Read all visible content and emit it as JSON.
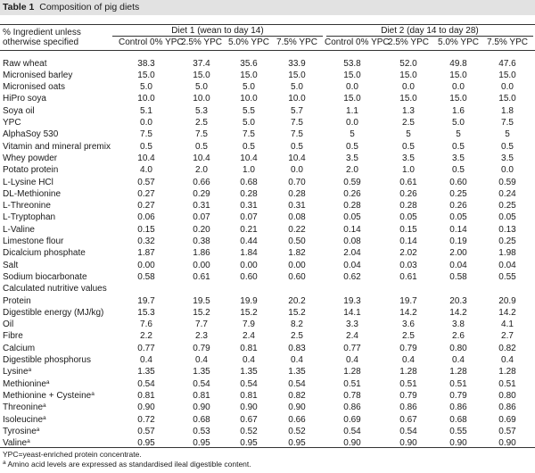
{
  "table": {
    "label": "Table 1",
    "title": "Composition of pig diets",
    "stub_header_line1": "% Ingredient unless",
    "stub_header_line2": "otherwise specified",
    "groups": [
      "Diet 1 (wean to day 14)",
      "Diet 2 (day 14 to day 28)"
    ],
    "columns": [
      "Control 0% YPC",
      "2.5% YPC",
      "5.0% YPC",
      "7.5% YPC",
      "Control 0% YPC",
      "2.5% YPC",
      "5.0% YPC",
      "7.5% YPC"
    ],
    "rows": [
      {
        "label": "Raw wheat",
        "sup": "",
        "values": [
          "38.3",
          "37.4",
          "35.6",
          "33.9",
          "53.8",
          "52.0",
          "49.8",
          "47.6"
        ]
      },
      {
        "label": "Micronised barley",
        "sup": "",
        "values": [
          "15.0",
          "15.0",
          "15.0",
          "15.0",
          "15.0",
          "15.0",
          "15.0",
          "15.0"
        ]
      },
      {
        "label": "Micronised oats",
        "sup": "",
        "values": [
          "5.0",
          "5.0",
          "5.0",
          "5.0",
          "0.0",
          "0.0",
          "0.0",
          "0.0"
        ]
      },
      {
        "label": "HiPro soya",
        "sup": "",
        "values": [
          "10.0",
          "10.0",
          "10.0",
          "10.0",
          "15.0",
          "15.0",
          "15.0",
          "15.0"
        ]
      },
      {
        "label": "Soya oil",
        "sup": "",
        "values": [
          "5.1",
          "5.3",
          "5.5",
          "5.7",
          "1.1",
          "1.3",
          "1.6",
          "1.8"
        ]
      },
      {
        "label": "YPC",
        "sup": "",
        "values": [
          "0.0",
          "2.5",
          "5.0",
          "7.5",
          "0.0",
          "2.5",
          "5.0",
          "7.5"
        ]
      },
      {
        "label": "AlphaSoy 530",
        "sup": "",
        "values": [
          "7.5",
          "7.5",
          "7.5",
          "7.5",
          "5",
          "5",
          "5",
          "5"
        ]
      },
      {
        "label": "Vitamin and mineral premix",
        "sup": "",
        "values": [
          "0.5",
          "0.5",
          "0.5",
          "0.5",
          "0.5",
          "0.5",
          "0.5",
          "0.5"
        ]
      },
      {
        "label": "Whey powder",
        "sup": "",
        "values": [
          "10.4",
          "10.4",
          "10.4",
          "10.4",
          "3.5",
          "3.5",
          "3.5",
          "3.5"
        ]
      },
      {
        "label": "Potato protein",
        "sup": "",
        "values": [
          "4.0",
          "2.0",
          "1.0",
          "0.0",
          "2.0",
          "1.0",
          "0.5",
          "0.0"
        ]
      },
      {
        "label": "L-Lysine HCl",
        "sup": "",
        "values": [
          "0.57",
          "0.66",
          "0.68",
          "0.70",
          "0.59",
          "0.61",
          "0.60",
          "0.59"
        ]
      },
      {
        "label": "DL-Methionine",
        "sup": "",
        "values": [
          "0.27",
          "0.29",
          "0.28",
          "0.28",
          "0.26",
          "0.26",
          "0.25",
          "0.24"
        ]
      },
      {
        "label": "L-Threonine",
        "sup": "",
        "values": [
          "0.27",
          "0.31",
          "0.31",
          "0.31",
          "0.28",
          "0.28",
          "0.26",
          "0.25"
        ]
      },
      {
        "label": "L-Tryptophan",
        "sup": "",
        "values": [
          "0.06",
          "0.07",
          "0.07",
          "0.08",
          "0.05",
          "0.05",
          "0.05",
          "0.05"
        ]
      },
      {
        "label": "L-Valine",
        "sup": "",
        "values": [
          "0.15",
          "0.20",
          "0.21",
          "0.22",
          "0.14",
          "0.15",
          "0.14",
          "0.13"
        ]
      },
      {
        "label": "Limestone flour",
        "sup": "",
        "values": [
          "0.32",
          "0.38",
          "0.44",
          "0.50",
          "0.08",
          "0.14",
          "0.19",
          "0.25"
        ]
      },
      {
        "label": "Dicalcium phosphate",
        "sup": "",
        "values": [
          "1.87",
          "1.86",
          "1.84",
          "1.82",
          "2.04",
          "2.02",
          "2.00",
          "1.98"
        ]
      },
      {
        "label": "Salt",
        "sup": "",
        "values": [
          "0.00",
          "0.00",
          "0.00",
          "0.00",
          "0.04",
          "0.03",
          "0.04",
          "0.04"
        ]
      },
      {
        "label": "Sodium biocarbonate",
        "sup": "",
        "values": [
          "0.58",
          "0.61",
          "0.60",
          "0.60",
          "0.62",
          "0.61",
          "0.58",
          "0.55"
        ]
      },
      {
        "label": "Calculated nutritive values",
        "sup": "",
        "values": [
          "",
          "",
          "",
          "",
          "",
          "",
          "",
          ""
        ]
      },
      {
        "label": "Protein",
        "sup": "",
        "values": [
          "19.7",
          "19.5",
          "19.9",
          "20.2",
          "19.3",
          "19.7",
          "20.3",
          "20.9"
        ]
      },
      {
        "label": "Digestible energy (MJ/kg)",
        "sup": "",
        "values": [
          "15.3",
          "15.2",
          "15.2",
          "15.2",
          "14.1",
          "14.2",
          "14.2",
          "14.2"
        ]
      },
      {
        "label": "Oil",
        "sup": "",
        "values": [
          "7.6",
          "7.7",
          "7.9",
          "8.2",
          "3.3",
          "3.6",
          "3.8",
          "4.1"
        ]
      },
      {
        "label": "Fibre",
        "sup": "",
        "values": [
          "2.2",
          "2.3",
          "2.4",
          "2.5",
          "2.4",
          "2.5",
          "2.6",
          "2.7"
        ]
      },
      {
        "label": "Calcium",
        "sup": "",
        "values": [
          "0.77",
          "0.79",
          "0.81",
          "0.83",
          "0.77",
          "0.79",
          "0.80",
          "0.82"
        ]
      },
      {
        "label": "Digestible phosphorus",
        "sup": "",
        "values": [
          "0.4",
          "0.4",
          "0.4",
          "0.4",
          "0.4",
          "0.4",
          "0.4",
          "0.4"
        ]
      },
      {
        "label": "Lysine",
        "sup": "a",
        "values": [
          "1.35",
          "1.35",
          "1.35",
          "1.35",
          "1.28",
          "1.28",
          "1.28",
          "1.28"
        ]
      },
      {
        "label": "Methionine",
        "sup": "a",
        "values": [
          "0.54",
          "0.54",
          "0.54",
          "0.54",
          "0.51",
          "0.51",
          "0.51",
          "0.51"
        ]
      },
      {
        "label": "Methionine + Cysteine",
        "sup": "a",
        "values": [
          "0.81",
          "0.81",
          "0.81",
          "0.82",
          "0.78",
          "0.79",
          "0.79",
          "0.80"
        ]
      },
      {
        "label": "Threonine",
        "sup": "a",
        "values": [
          "0.90",
          "0.90",
          "0.90",
          "0.90",
          "0.86",
          "0.86",
          "0.86",
          "0.86"
        ]
      },
      {
        "label": "Isoleucine",
        "sup": "a",
        "values": [
          "0.72",
          "0.68",
          "0.67",
          "0.66",
          "0.69",
          "0.67",
          "0.68",
          "0.69"
        ]
      },
      {
        "label": "Tyrosine",
        "sup": "a",
        "values": [
          "0.57",
          "0.53",
          "0.52",
          "0.52",
          "0.54",
          "0.54",
          "0.55",
          "0.57"
        ]
      },
      {
        "label": "Valine",
        "sup": "a",
        "values": [
          "0.95",
          "0.95",
          "0.95",
          "0.95",
          "0.90",
          "0.90",
          "0.90",
          "0.90"
        ]
      }
    ],
    "footnotes": [
      {
        "mark": "",
        "text": "YPC=yeast-enriched protein concentrate."
      },
      {
        "mark": "a",
        "text": " Amino acid levels are expressed as standardised ileal digestible content."
      }
    ]
  }
}
